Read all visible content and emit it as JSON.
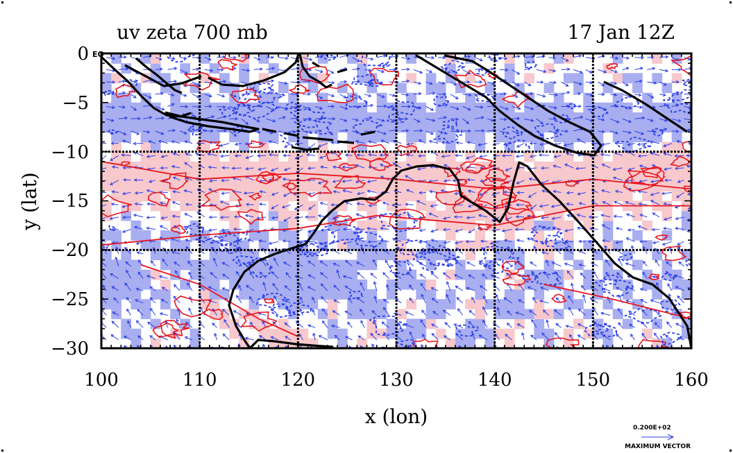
{
  "figure": {
    "title": "uv zeta 700 mb",
    "time_label": "17 Jan 12Z",
    "x_axis_label": "x (lon)",
    "y_axis_label": "y (lat)",
    "equator_label": "EQ",
    "vector_key_value": "0.200E+02",
    "vector_key_label": "MAXIMUM VECTOR"
  },
  "colors": {
    "positive_vorticity_fill": "#f7c8cc",
    "positive_vorticity_contour": "#e8141c",
    "negative_vorticity_fill": "#a8aef0",
    "negative_vorticity_contour": "#2a3ee8",
    "wind_vector": "#2a3ee8",
    "coastline": "#000000"
  },
  "chart_data": {
    "type": "heatmap",
    "projection": "lon-lat",
    "xlim": [
      100,
      160
    ],
    "ylim": [
      -30,
      0
    ],
    "x_ticks": [
      "100",
      "110",
      "120",
      "130",
      "140",
      "150",
      "160"
    ],
    "y_ticks": [
      "0",
      "−5",
      "−10",
      "−15",
      "−20",
      "−25",
      "−30"
    ],
    "gridlines_lon": [
      110,
      120,
      130,
      140,
      150
    ],
    "gridlines_lat": [
      -10,
      -20
    ],
    "layers": [
      "filled relative vorticity",
      "vorticity contours",
      "wind vectors",
      "coastlines"
    ]
  }
}
